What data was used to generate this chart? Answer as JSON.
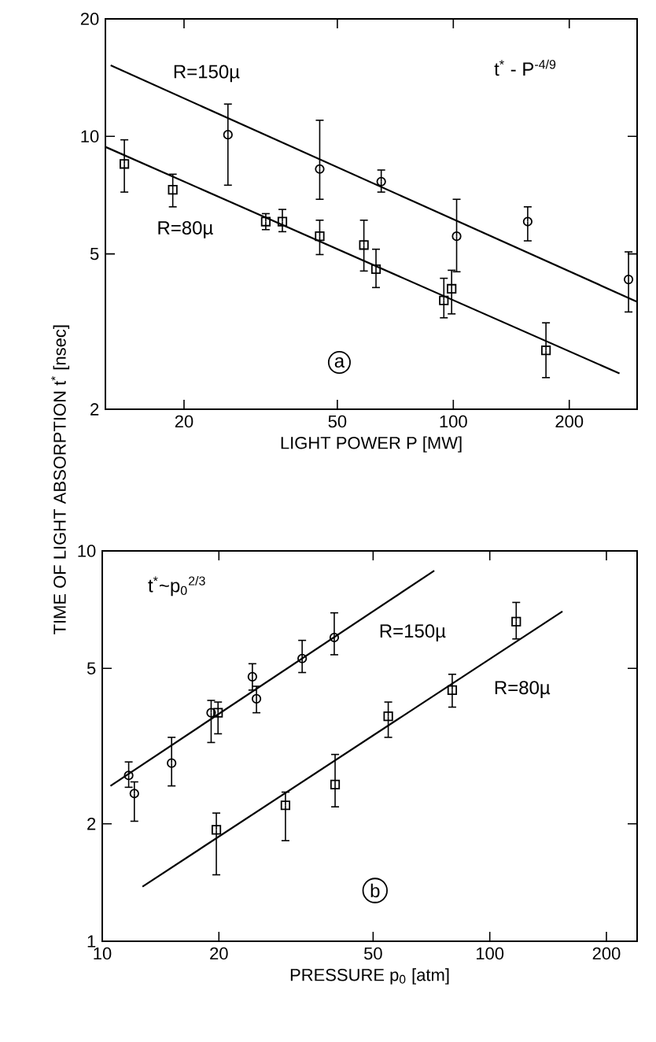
{
  "chart_data": [
    {
      "type": "scatter",
      "xlabel": "LIGHT POWER  P [MW]",
      "ylabel": "TIME OF LIGHT ABSORPTION  t$^{*}$ [nsec]",
      "log": "xy",
      "xlim": [
        12.5,
        300
      ],
      "ylim": [
        2,
        20
      ],
      "xticks": [
        20,
        50,
        100,
        200
      ],
      "yticks": [
        2,
        5,
        10,
        20
      ],
      "annotations": [
        "t$^{*}$ - P$^{-4/9}$",
        "a"
      ],
      "series": [
        {
          "name": "R=150µ",
          "color": "#000000",
          "marker": "circle",
          "x": [
            26,
            45,
            65,
            102,
            156,
            285
          ],
          "values": [
            10.1,
            8.25,
            7.66,
            5.55,
            6.05,
            4.3
          ],
          "errors": [
            [
              7.5,
              12.1
            ],
            [
              6.9,
              11.0
            ],
            [
              7.2,
              8.2
            ],
            [
              4.5,
              6.9
            ],
            [
              5.4,
              6.6
            ],
            [
              3.55,
              5.06
            ]
          ]
        },
        {
          "name": "R=80µ",
          "color": "#000000",
          "marker": "square",
          "x": [
            14,
            18.7,
            32.6,
            36,
            45,
            58.6,
            63,
            94.5,
            99,
            174
          ],
          "values": [
            8.5,
            7.3,
            6.05,
            6.05,
            5.55,
            5.27,
            4.57,
            3.8,
            4.07,
            2.83
          ],
          "errors": [
            [
              7.2,
              9.8
            ],
            [
              6.6,
              8.0
            ],
            [
              5.77,
              6.34
            ],
            [
              5.7,
              6.5
            ],
            [
              4.98,
              6.1
            ],
            [
              4.52,
              6.1
            ],
            [
              4.1,
              5.14
            ],
            [
              3.43,
              4.33
            ],
            [
              3.51,
              4.54
            ],
            [
              2.41,
              3.33
            ]
          ]
        },
        {
          "type": "line",
          "color": "#000000",
          "x": [
            12.9,
            300
          ],
          "values": [
            15.2,
            3.77
          ]
        },
        {
          "type": "line",
          "color": "#000000",
          "x": [
            12.5,
            270
          ],
          "values": [
            9.4,
            2.47
          ]
        }
      ]
    },
    {
      "type": "scatter",
      "xlabel": "PRESSURE  p$_{0}$ [atm]",
      "log": "xy",
      "xlim": [
        10,
        240
      ],
      "ylim": [
        1,
        10
      ],
      "xticks": [
        10,
        20,
        50,
        100,
        200
      ],
      "yticks": [
        1,
        2,
        5,
        10
      ],
      "annotations": [
        "t$^{*}$~p$_{0}$$^{2/3}$",
        "b"
      ],
      "series": [
        {
          "name": "R=150µ",
          "color": "#000000",
          "marker": "circle",
          "x": [
            11.7,
            12.1,
            15.1,
            19.1,
            24.4,
            25.0,
            32.8,
            39.7
          ],
          "values": [
            2.66,
            2.39,
            2.86,
            3.85,
            4.76,
            4.18,
            5.3,
            6.0
          ],
          "errors": [
            [
              2.48,
              2.88
            ],
            [
              2.03,
              2.56
            ],
            [
              2.5,
              3.33
            ],
            [
              3.23,
              4.14
            ],
            [
              4.4,
              5.14
            ],
            [
              3.85,
              4.5
            ],
            [
              4.88,
              5.9
            ],
            [
              5.42,
              6.94
            ]
          ]
        },
        {
          "name": "R=80µ",
          "color": "#000000",
          "marker": "square",
          "x": [
            19.9,
            19.7,
            29.7,
            39.9,
            54.7,
            80,
            117
          ],
          "values": [
            3.85,
            1.93,
            2.23,
            2.52,
            3.77,
            4.4,
            6.59
          ],
          "errors": [
            [
              3.4,
              4.1
            ],
            [
              1.48,
              2.13
            ],
            [
              1.81,
              2.41
            ],
            [
              2.21,
              3.01
            ],
            [
              3.33,
              4.1
            ],
            [
              3.98,
              4.83
            ],
            [
              5.95,
              7.38
            ]
          ]
        },
        {
          "type": "line",
          "color": "#000000",
          "x": [
            10.5,
            71.9
          ],
          "values": [
            2.5,
            8.9
          ]
        },
        {
          "type": "line",
          "color": "#000000",
          "x": [
            12.7,
            154
          ],
          "values": [
            1.38,
            7.0
          ]
        }
      ]
    }
  ]
}
